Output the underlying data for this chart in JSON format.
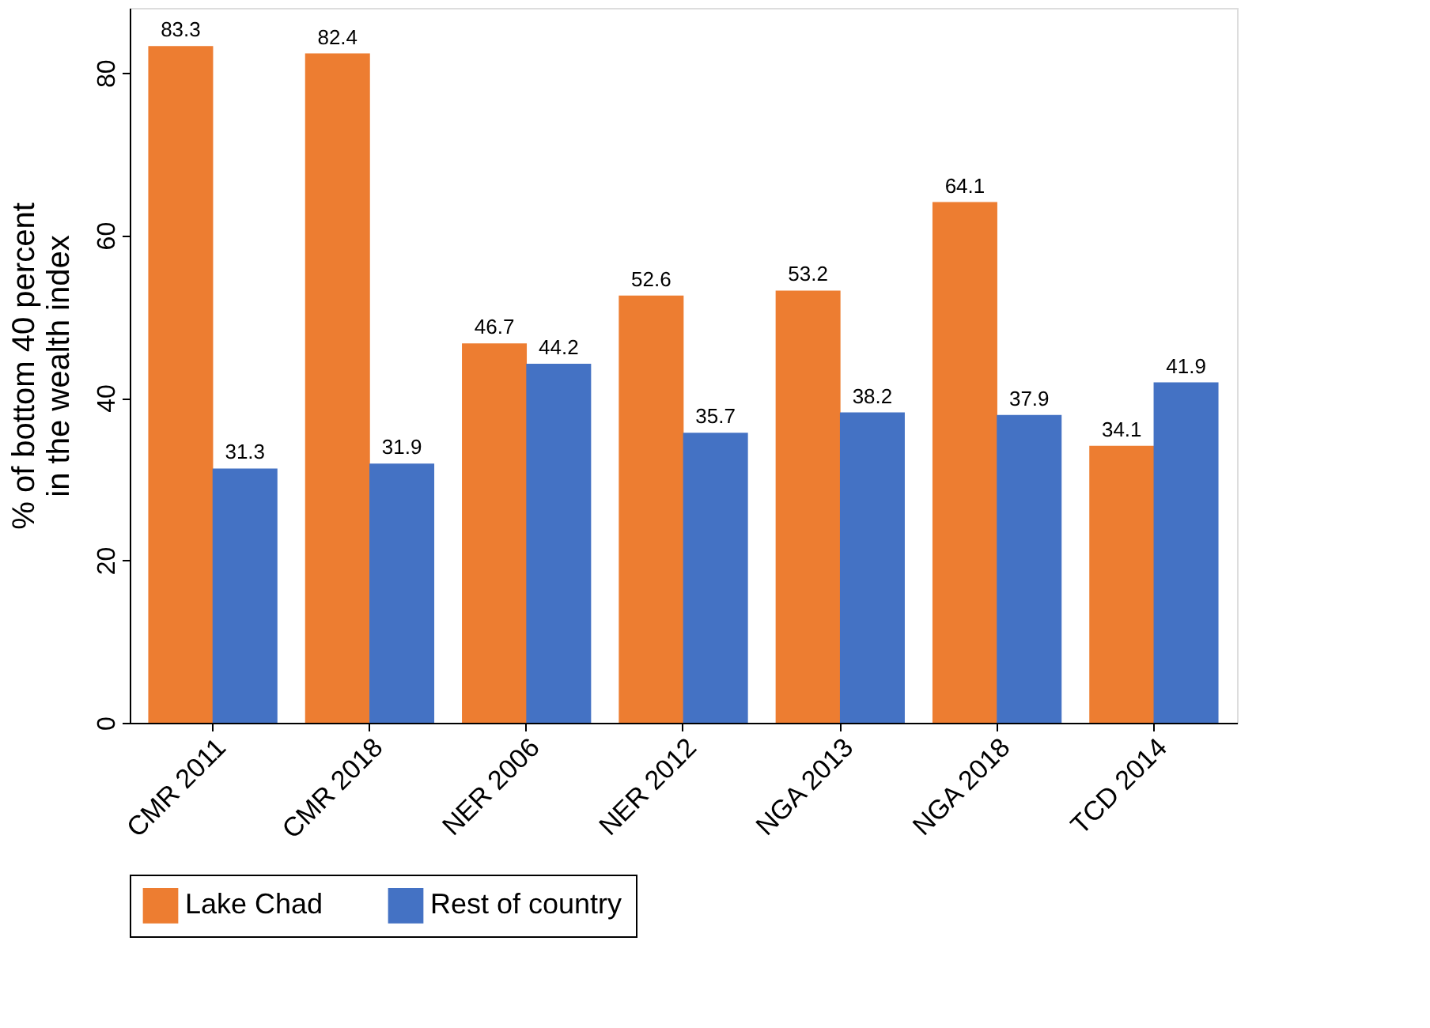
{
  "chart_data": {
    "type": "bar",
    "categories": [
      "CMR 2011",
      "CMR 2018",
      "NER 2006",
      "NER 2012",
      "NGA 2013",
      "NGA 2018",
      "TCD 2014"
    ],
    "series": [
      {
        "name": "Lake Chad",
        "color": "#ed7d31",
        "values": [
          83.3,
          82.4,
          46.7,
          52.6,
          53.2,
          64.1,
          34.1
        ]
      },
      {
        "name": "Rest of country",
        "color": "#4472c4",
        "values": [
          31.3,
          31.9,
          44.2,
          35.7,
          38.2,
          37.9,
          41.9
        ]
      }
    ],
    "ylabel": "% of bottom 40 percent\nin the wealth index",
    "ylim": [
      0,
      88
    ],
    "yticks": [
      0,
      20,
      40,
      60,
      80
    ],
    "data_labels": true,
    "grid": false,
    "legend": "bottom"
  }
}
